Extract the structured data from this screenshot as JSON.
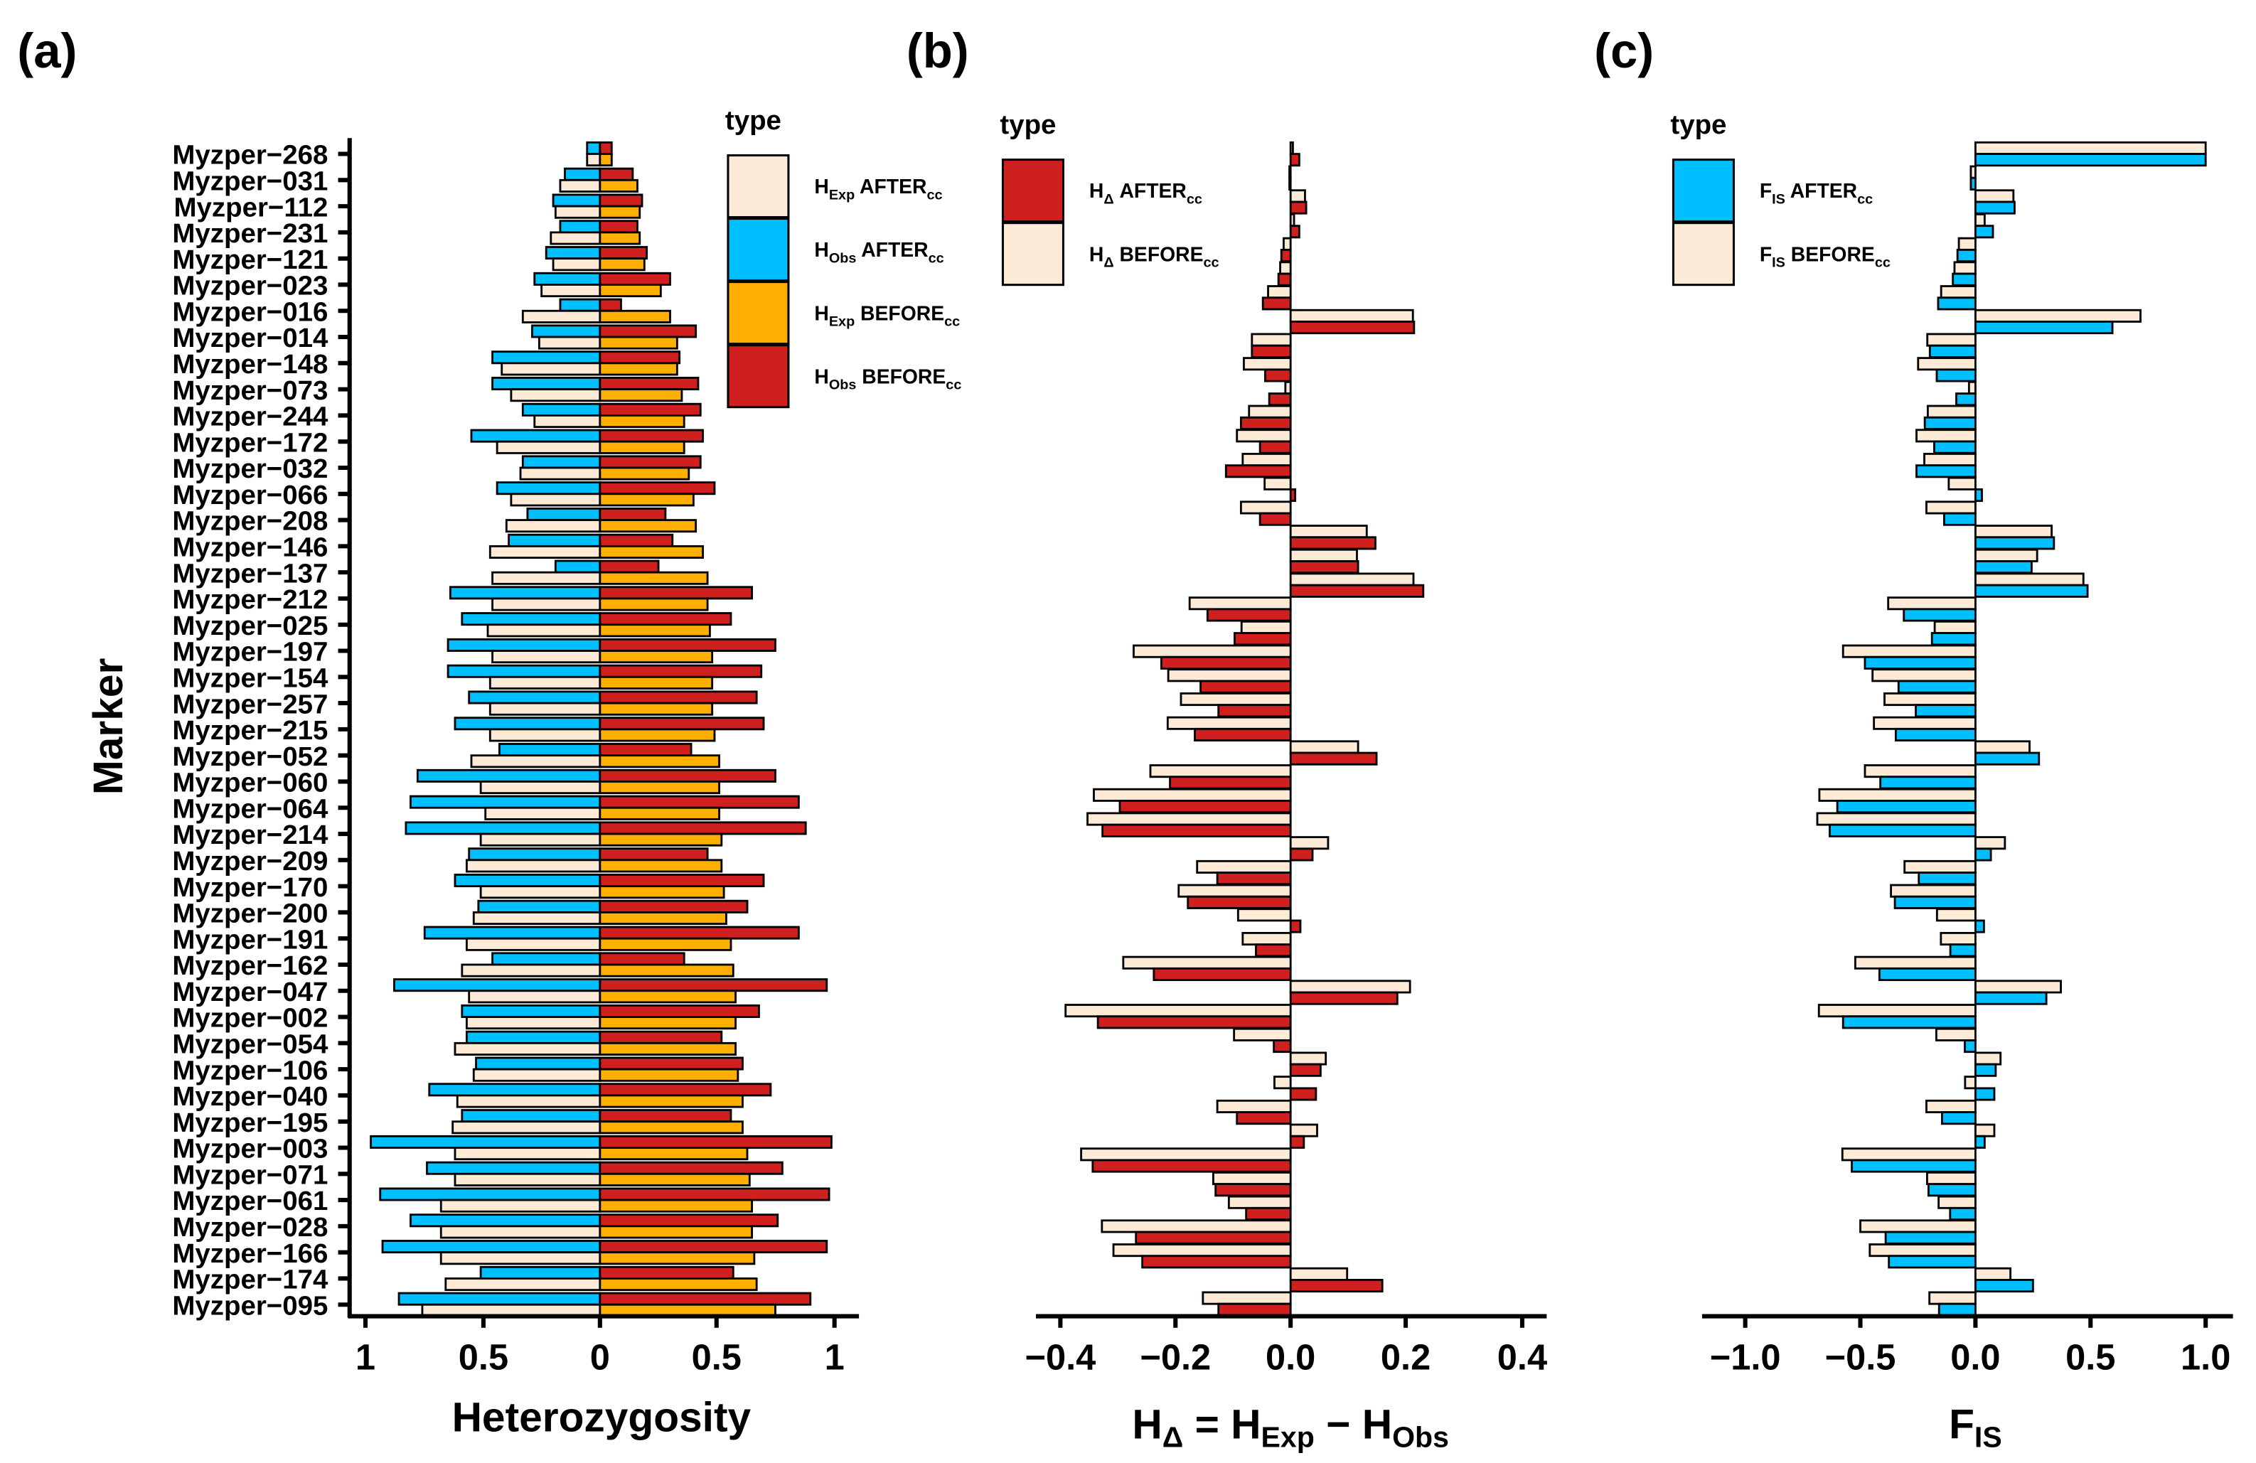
{
  "colors": {
    "hexp_after": "#FDEBD7",
    "hobs_after": "#00BFFF",
    "hexp_before": "#FFAF00",
    "hobs_before": "#D01F1F",
    "delta_after": "#D01F1F",
    "delta_before": "#FDEBD7",
    "fis_after": "#00BFFF",
    "fis_before": "#FDEBD7"
  },
  "panels": {
    "a": {
      "letter": "(a)",
      "ylabel": "Marker",
      "xlabel": "Heterozygosity",
      "ticks": [
        "1",
        "0.5",
        "0",
        "0.5",
        "1"
      ],
      "legend": {
        "title": "type",
        "items": [
          {
            "h": "H",
            "sub": "Exp",
            "label": " AFTER",
            "cc": "cc",
            "key": "hexp_after"
          },
          {
            "h": "H",
            "sub": "Obs",
            "label": " AFTER",
            "cc": "cc",
            "key": "hobs_after"
          },
          {
            "h": "H",
            "sub": "Exp",
            "label": " BEFORE",
            "cc": "cc",
            "key": "hexp_before"
          },
          {
            "h": "H",
            "sub": "Obs",
            "label": " BEFORE",
            "cc": "cc",
            "key": "hobs_before"
          }
        ]
      }
    },
    "b": {
      "letter": "(b)",
      "xlabel": {
        "h1": "H",
        "s1": "Δ",
        "eq": " = H",
        "s2": "Exp",
        "minus": " − H",
        "s3": "Obs"
      },
      "ticks": [
        "−0.4",
        "−0.2",
        "0.0",
        "0.2",
        "0.4"
      ],
      "legend": {
        "title": "type",
        "items": [
          {
            "h": "H",
            "sub": "Δ",
            "label": " AFTER",
            "cc": "cc",
            "key": "delta_after"
          },
          {
            "h": "H",
            "sub": "Δ",
            "label": " BEFORE",
            "cc": "cc",
            "key": "delta_before"
          }
        ]
      }
    },
    "c": {
      "letter": "(c)",
      "xlabel": {
        "h": "F",
        "sub": "IS"
      },
      "ticks": [
        "−1.0",
        "−0.5",
        "0.0",
        "0.5",
        "1.0"
      ],
      "legend": {
        "title": "type",
        "items": [
          {
            "h": "F",
            "sub": "IS",
            "label": " AFTER",
            "cc": "cc",
            "key": "fis_after"
          },
          {
            "h": "F",
            "sub": "IS",
            "label": " BEFORE",
            "cc": "cc",
            "key": "fis_before"
          }
        ]
      }
    }
  },
  "chart_data": [
    {
      "type": "bar",
      "orientation": "horizontal-diverging",
      "title": "(a)",
      "xlabel": "Heterozygosity",
      "ylabel": "Marker",
      "xlim": [
        -1,
        1
      ],
      "note": "AFTER series drawn leftward, BEFORE series drawn rightward; tick labels show absolute values",
      "categories": [
        "Myzper−268",
        "Myzper−031",
        "Myzper−112",
        "Myzper−231",
        "Myzper−121",
        "Myzper−023",
        "Myzper−016",
        "Myzper−014",
        "Myzper−148",
        "Myzper−073",
        "Myzper−244",
        "Myzper−172",
        "Myzper−032",
        "Myzper−066",
        "Myzper−208",
        "Myzper−146",
        "Myzper−137",
        "Myzper−212",
        "Myzper−025",
        "Myzper−197",
        "Myzper−154",
        "Myzper−257",
        "Myzper−215",
        "Myzper−052",
        "Myzper−060",
        "Myzper−064",
        "Myzper−214",
        "Myzper−209",
        "Myzper−170",
        "Myzper−200",
        "Myzper−191",
        "Myzper−162",
        "Myzper−047",
        "Myzper−002",
        "Myzper−054",
        "Myzper−106",
        "Myzper−040",
        "Myzper−195",
        "Myzper−003",
        "Myzper−071",
        "Myzper−061",
        "Myzper−028",
        "Myzper−166",
        "Myzper−174",
        "Myzper−095"
      ],
      "series": [
        {
          "name": "HObs AFTERcc",
          "key": "hobs_after",
          "values": [
            0.055,
            0.15,
            0.2,
            0.17,
            0.23,
            0.28,
            0.17,
            0.29,
            0.46,
            0.46,
            0.33,
            0.55,
            0.33,
            0.44,
            0.31,
            0.39,
            0.19,
            0.64,
            0.59,
            0.65,
            0.65,
            0.56,
            0.62,
            0.43,
            0.78,
            0.81,
            0.83,
            0.56,
            0.62,
            0.52,
            0.75,
            0.46,
            0.88,
            0.59,
            0.57,
            0.53,
            0.73,
            0.59,
            0.98,
            0.74,
            0.94,
            0.81,
            0.93,
            0.51,
            0.86
          ]
        },
        {
          "name": "HExp AFTERcc",
          "key": "hexp_after",
          "values": [
            0.055,
            0.17,
            0.19,
            0.21,
            0.2,
            0.25,
            0.33,
            0.26,
            0.42,
            0.38,
            0.28,
            0.44,
            0.34,
            0.38,
            0.4,
            0.47,
            0.46,
            0.46,
            0.48,
            0.46,
            0.47,
            0.47,
            0.47,
            0.55,
            0.51,
            0.49,
            0.51,
            0.57,
            0.51,
            0.54,
            0.57,
            0.59,
            0.56,
            0.57,
            0.62,
            0.54,
            0.61,
            0.63,
            0.62,
            0.62,
            0.68,
            0.68,
            0.68,
            0.66,
            0.76
          ]
        },
        {
          "name": "HObs BEFOREcc",
          "key": "hobs_before",
          "values": [
            0.05,
            0.14,
            0.18,
            0.16,
            0.2,
            0.3,
            0.09,
            0.41,
            0.34,
            0.42,
            0.43,
            0.44,
            0.43,
            0.49,
            0.28,
            0.31,
            0.25,
            0.65,
            0.56,
            0.75,
            0.69,
            0.67,
            0.7,
            0.39,
            0.75,
            0.85,
            0.88,
            0.46,
            0.7,
            0.63,
            0.85,
            0.36,
            0.97,
            0.68,
            0.52,
            0.61,
            0.73,
            0.56,
            0.99,
            0.78,
            0.98,
            0.76,
            0.97,
            0.57,
            0.9
          ]
        },
        {
          "name": "HExp BEFOREcc",
          "key": "hexp_before",
          "values": [
            0.05,
            0.16,
            0.17,
            0.17,
            0.19,
            0.26,
            0.3,
            0.33,
            0.33,
            0.35,
            0.36,
            0.36,
            0.38,
            0.4,
            0.41,
            0.44,
            0.46,
            0.46,
            0.47,
            0.48,
            0.48,
            0.48,
            0.49,
            0.51,
            0.51,
            0.51,
            0.52,
            0.52,
            0.53,
            0.54,
            0.56,
            0.57,
            0.58,
            0.58,
            0.58,
            0.59,
            0.61,
            0.61,
            0.63,
            0.64,
            0.65,
            0.65,
            0.66,
            0.67,
            0.75
          ]
        }
      ]
    },
    {
      "type": "bar",
      "orientation": "horizontal",
      "title": "(b)",
      "xlabel": "HΔ = HExp − HObs",
      "xlim": [
        -0.45,
        0.45
      ],
      "note": "rows ordered top to bottom, no row labels shown",
      "series": [
        {
          "name": "HΔ BEFOREcc",
          "key": "delta_before",
          "values": [
            0.004,
            -0.002,
            0.025,
            0.006,
            -0.012,
            -0.018,
            -0.039,
            0.212,
            -0.067,
            -0.081,
            -0.009,
            -0.072,
            -0.093,
            -0.083,
            -0.045,
            -0.086,
            0.132,
            0.115,
            0.213,
            -0.175,
            -0.085,
            -0.272,
            -0.212,
            -0.19,
            -0.213,
            0.117,
            -0.243,
            -0.341,
            -0.352,
            0.065,
            -0.162,
            -0.194,
            -0.091,
            -0.083,
            -0.29,
            0.207,
            -0.39,
            -0.098,
            0.061,
            -0.028,
            -0.127,
            0.046,
            -0.363,
            -0.134,
            -0.107,
            -0.327,
            -0.307,
            0.098,
            -0.152
          ]
        },
        {
          "name": "HΔ AFTERcc",
          "key": "delta_after",
          "values": [
            0.015,
            -0.002,
            0.027,
            0.015,
            -0.016,
            -0.021,
            -0.048,
            0.214,
            -0.067,
            -0.044,
            -0.037,
            -0.086,
            -0.053,
            -0.112,
            0.008,
            -0.053,
            0.147,
            0.117,
            0.23,
            -0.144,
            -0.097,
            -0.224,
            -0.156,
            -0.125,
            -0.166,
            0.149,
            -0.209,
            -0.296,
            -0.326,
            0.038,
            -0.127,
            -0.178,
            0.017,
            -0.06,
            -0.237,
            0.185,
            -0.334,
            -0.029,
            0.052,
            0.044,
            -0.093,
            0.023,
            -0.343,
            -0.13,
            -0.077,
            -0.268,
            -0.257,
            0.159,
            -0.125
          ]
        }
      ]
    },
    {
      "type": "bar",
      "orientation": "horizontal",
      "title": "(c)",
      "xlabel": "FIS",
      "xlim": [
        -1.1,
        1.1
      ],
      "note": "rows ordered top to bottom, no row labels shown",
      "series": [
        {
          "name": "FIS BEFOREcc",
          "key": "fis_before",
          "values": [
            1.0,
            -0.02,
            0.165,
            0.04,
            -0.072,
            -0.091,
            -0.149,
            0.717,
            -0.209,
            -0.249,
            -0.028,
            -0.207,
            -0.256,
            -0.222,
            -0.116,
            -0.213,
            0.331,
            0.268,
            0.469,
            -0.379,
            -0.177,
            -0.575,
            -0.447,
            -0.395,
            -0.441,
            0.235,
            -0.48,
            -0.678,
            -0.687,
            0.128,
            -0.308,
            -0.367,
            -0.167,
            -0.15,
            -0.522,
            0.371,
            -0.68,
            -0.17,
            0.109,
            -0.045,
            -0.213,
            0.082,
            -0.578,
            -0.21,
            -0.16,
            -0.5,
            -0.459,
            0.152,
            -0.2
          ]
        },
        {
          "name": "FIS AFTERcc",
          "key": "fis_after",
          "values": [
            1.0,
            -0.02,
            0.17,
            0.076,
            -0.078,
            -0.098,
            -0.162,
            0.595,
            -0.198,
            -0.168,
            -0.083,
            -0.22,
            -0.179,
            -0.256,
            0.028,
            -0.136,
            0.341,
            0.244,
            0.487,
            -0.311,
            -0.189,
            -0.48,
            -0.334,
            -0.259,
            -0.346,
            0.276,
            -0.413,
            -0.6,
            -0.633,
            0.067,
            -0.246,
            -0.35,
            0.037,
            -0.109,
            -0.417,
            0.308,
            -0.575,
            -0.046,
            0.088,
            0.082,
            -0.145,
            0.04,
            -0.537,
            -0.204,
            -0.11,
            -0.39,
            -0.376,
            0.25,
            -0.158
          ]
        }
      ]
    }
  ]
}
